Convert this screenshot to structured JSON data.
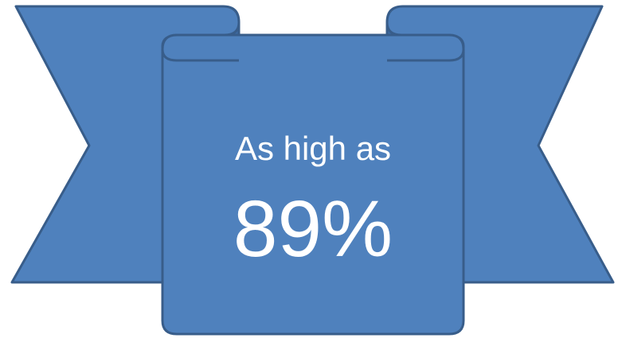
{
  "banner": {
    "subtitle": "As high as",
    "value": "89%",
    "colors": {
      "fill": "#4f81bd",
      "fold": "#3d6aa3",
      "stroke": "#385d8a",
      "text": "#ffffff"
    }
  }
}
